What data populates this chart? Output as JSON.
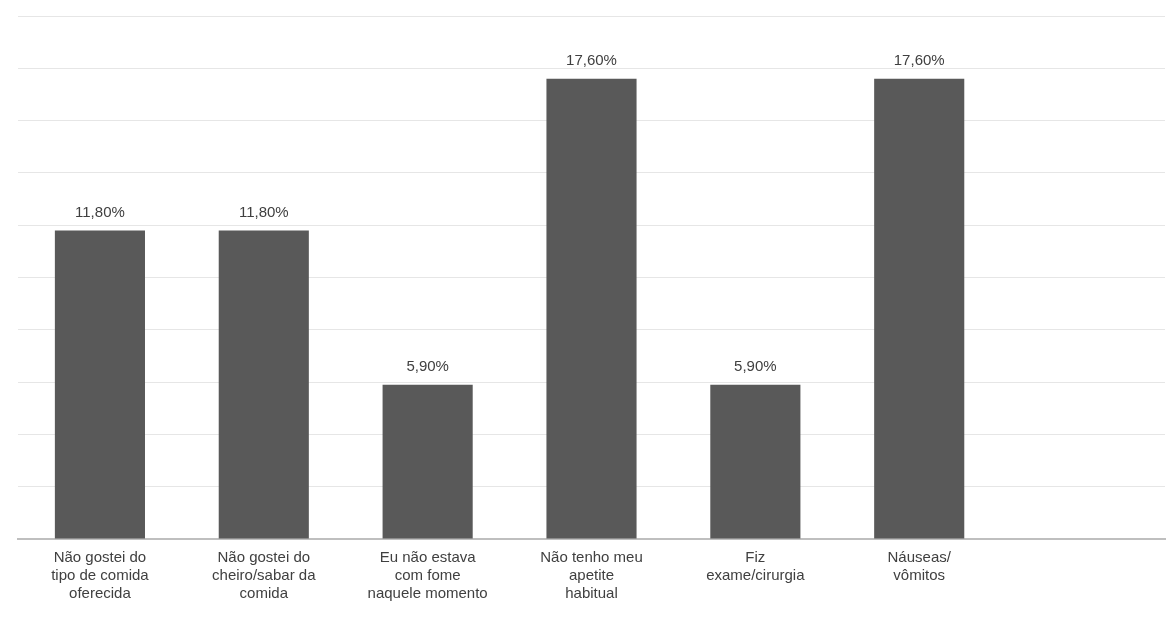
{
  "chart_data": {
    "type": "bar",
    "categories": [
      "Não gostei do tipo de comida oferecida",
      "Não gostei do cheiro/sabar da comida",
      "Eu não estava com fome naquele momento",
      "Não tenho meu apetite habitual",
      "Fiz exame/cirurgia",
      "Náuseas/ vômitos",
      null
    ],
    "values": [
      11.8,
      11.8,
      5.9,
      17.6,
      5.9,
      17.6,
      null
    ],
    "value_labels": [
      "11,80%",
      "11,80%",
      "5,90%",
      "17,60%",
      "5,90%",
      "17,60%",
      null
    ],
    "color": "#595959",
    "ylim": [
      0,
      20
    ],
    "yticks": [
      {
        "value": 0,
        "label": null
      },
      {
        "value": 2,
        "label": null
      },
      {
        "value": 4,
        "label": null
      },
      {
        "value": 6,
        "label": null
      },
      {
        "value": 8,
        "label": null
      },
      {
        "value": 10,
        "label": null
      },
      {
        "value": 12,
        "label": null
      },
      {
        "value": 14,
        "label": null
      },
      {
        "value": 16,
        "label": null
      },
      {
        "value": 18,
        "label": null
      },
      {
        "value": 20,
        "label": null
      }
    ],
    "grid": "y",
    "legend": false,
    "tick_labels": "x"
  }
}
